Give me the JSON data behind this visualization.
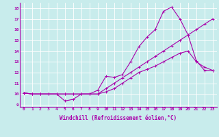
{
  "xlabel": "Windchill (Refroidissement éolien,°C)",
  "ylabel_ticks": [
    9,
    10,
    11,
    12,
    13,
    14,
    15,
    16,
    17,
    18
  ],
  "xlabel_ticks": [
    0,
    1,
    2,
    3,
    4,
    5,
    6,
    7,
    8,
    9,
    10,
    11,
    12,
    13,
    14,
    15,
    16,
    17,
    18,
    19,
    20,
    21,
    22,
    23
  ],
  "xlim": [
    -0.5,
    23.5
  ],
  "ylim": [
    8.8,
    18.5
  ],
  "bg_color": "#c8ecec",
  "grid_color": "#ffffff",
  "line_color": "#aa00aa",
  "line1_x": [
    0,
    1,
    2,
    3,
    4,
    5,
    6,
    7,
    8,
    9,
    10,
    11,
    12,
    13,
    14,
    15,
    16,
    17,
    18,
    19,
    20,
    21,
    22,
    23
  ],
  "line1_y": [
    10.1,
    10.0,
    10.0,
    10.0,
    10.0,
    9.35,
    9.5,
    10.0,
    10.0,
    10.35,
    11.65,
    11.55,
    11.8,
    13.0,
    14.4,
    15.3,
    16.0,
    17.7,
    18.1,
    17.0,
    15.5,
    13.1,
    12.2,
    12.2
  ],
  "line2_x": [
    0,
    1,
    2,
    3,
    4,
    5,
    6,
    7,
    8,
    9,
    10,
    11,
    12,
    13,
    14,
    15,
    16,
    17,
    18,
    19,
    20,
    21,
    22,
    23
  ],
  "line2_y": [
    10.1,
    10.0,
    10.0,
    10.0,
    10.0,
    10.0,
    10.0,
    10.0,
    10.0,
    10.0,
    10.5,
    11.0,
    11.5,
    12.0,
    12.5,
    13.0,
    13.5,
    14.0,
    14.5,
    15.0,
    15.5,
    16.0,
    16.5,
    17.0
  ],
  "line3_x": [
    0,
    1,
    2,
    3,
    4,
    5,
    6,
    7,
    8,
    9,
    10,
    11,
    12,
    13,
    14,
    15,
    16,
    17,
    18,
    19,
    20,
    21,
    22,
    23
  ],
  "line3_y": [
    10.1,
    10.0,
    10.0,
    10.0,
    10.0,
    10.0,
    10.0,
    10.0,
    10.0,
    10.0,
    10.2,
    10.5,
    11.0,
    11.5,
    12.0,
    12.3,
    12.6,
    13.0,
    13.4,
    13.8,
    14.0,
    13.0,
    12.5,
    12.2
  ],
  "marker": "+",
  "markersize": 3,
  "linewidth": 0.8,
  "tick_fontsize": 4.5,
  "xlabel_fontsize": 5.5
}
